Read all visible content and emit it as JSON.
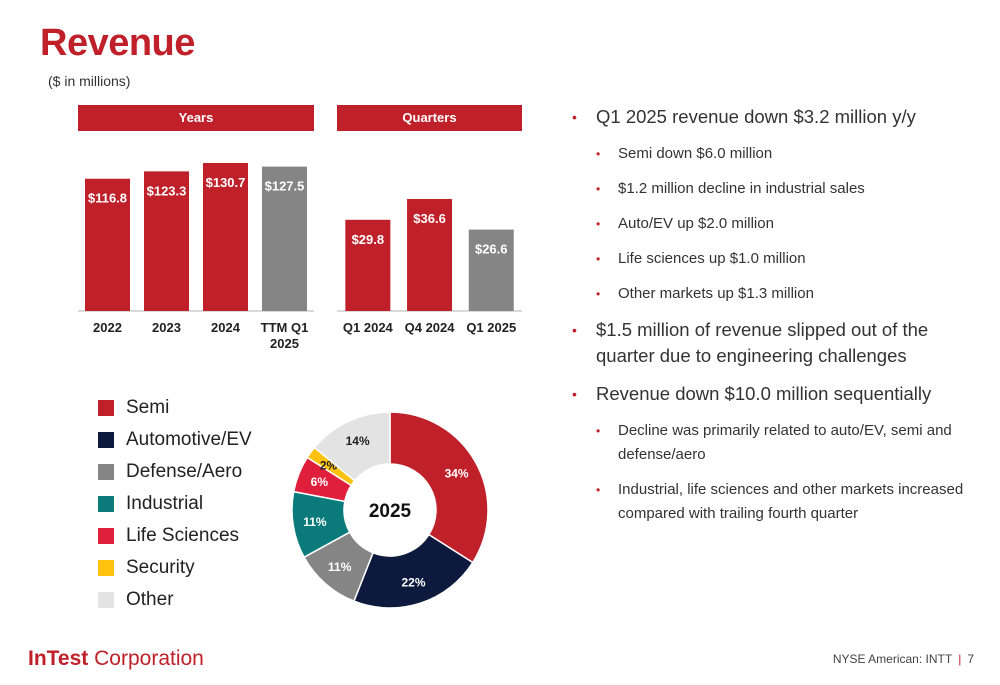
{
  "title": "Revenue",
  "subtitle": "($ in millions)",
  "panels": {
    "years": "Years",
    "quarters": "Quarters"
  },
  "chart_data": [
    {
      "type": "bar",
      "panel": "Years",
      "categories": [
        "2022",
        "2023",
        "2024",
        "TTM Q1 2025"
      ],
      "values": [
        116.8,
        123.3,
        130.7,
        127.5
      ],
      "labels": [
        "$116.8",
        "$123.3",
        "$130.7",
        "$127.5"
      ],
      "colors": [
        "#c0202a",
        "#c0202a",
        "#c0202a",
        "#858585"
      ],
      "ylim": [
        0,
        140
      ]
    },
    {
      "type": "bar",
      "panel": "Quarters",
      "categories": [
        "Q1 2024",
        "Q4 2024",
        "Q1 2025"
      ],
      "values": [
        29.8,
        36.6,
        26.6
      ],
      "labels": [
        "$29.8",
        "$36.6",
        "$26.6"
      ],
      "colors": [
        "#c0202a",
        "#c0202a",
        "#858585"
      ],
      "ylim": [
        0,
        40
      ]
    },
    {
      "type": "pie",
      "center_label": "2025",
      "slices": [
        {
          "name": "Semi",
          "value": 34,
          "label": "34%",
          "color": "#c0202a"
        },
        {
          "name": "Automotive/EV",
          "value": 22,
          "label": "22%",
          "color": "#0d1a3d"
        },
        {
          "name": "Defense/Aero",
          "value": 11,
          "label": "11%",
          "color": "#858585"
        },
        {
          "name": "Industrial",
          "value": 11,
          "label": "11%",
          "color": "#0a7b7a"
        },
        {
          "name": "Life Sciences",
          "value": 6,
          "label": "6%",
          "color": "#e01f3d"
        },
        {
          "name": "Security",
          "value": 2,
          "label": "2%",
          "color": "#ffc20e"
        },
        {
          "name": "Other",
          "value": 14,
          "label": "14%",
          "color": "#e3e3e3"
        }
      ]
    }
  ],
  "bullets": [
    {
      "level": 1,
      "text": "Q1 2025 revenue down $3.2 million y/y"
    },
    {
      "level": 2,
      "text": "Semi down $6.0 million"
    },
    {
      "level": 2,
      "text": "$1.2 million decline in industrial sales"
    },
    {
      "level": 2,
      "text": "Auto/EV up $2.0 million"
    },
    {
      "level": 2,
      "text": "Life sciences up $1.0 million"
    },
    {
      "level": 2,
      "text": "Other markets up $1.3 million"
    },
    {
      "level": 1,
      "text": "$1.5 million of revenue slipped out of the quarter due to engineering challenges"
    },
    {
      "level": 1,
      "text": "Revenue down $10.0 million sequentially"
    },
    {
      "level": 2,
      "text": "Decline was primarily related to auto/EV, semi and defense/aero"
    },
    {
      "level": 2,
      "text": "Industrial, life sciences and other markets increased compared with trailing fourth quarter"
    }
  ],
  "logo": {
    "bold": "InTest",
    "rest": " Corporation"
  },
  "footer": {
    "exchange": "NYSE American: INTT",
    "separator": "|",
    "page": "7"
  }
}
